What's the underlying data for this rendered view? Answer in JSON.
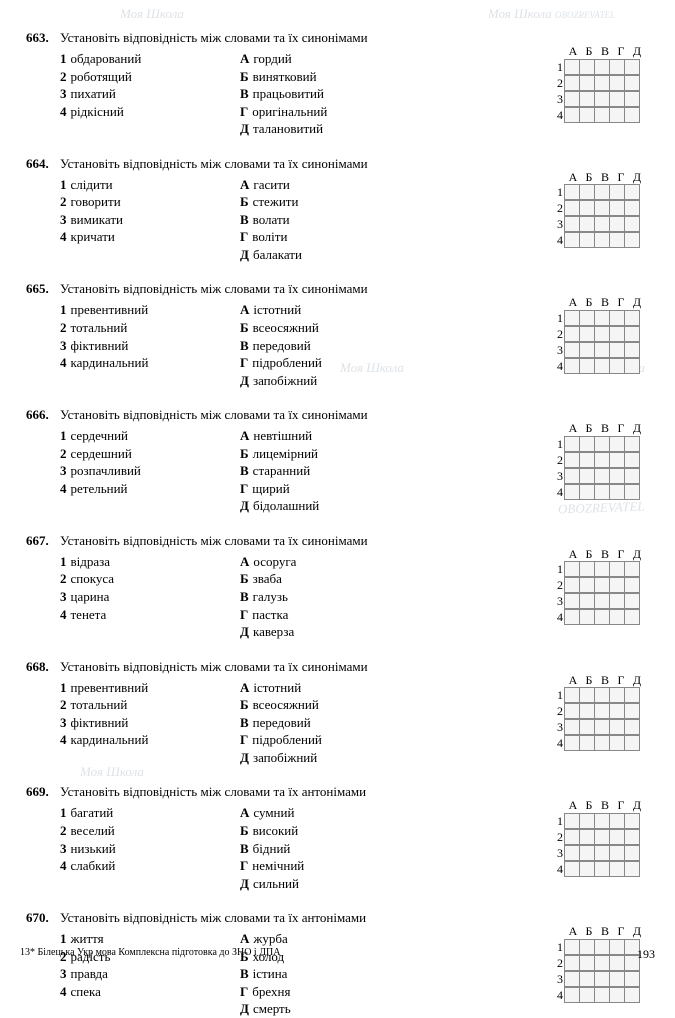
{
  "watermark_text": "Моя Школа",
  "watermark_sub": "OBOZREVATEL",
  "grid_headers": [
    "А",
    "Б",
    "В",
    "Г",
    "Д"
  ],
  "grid_rows": [
    "1",
    "2",
    "3",
    "4"
  ],
  "footer_left": "13* Білецька  Укр  мова  Комплексна підготовка до ЗНО і ДПА",
  "footer_page": "193",
  "questions": [
    {
      "num": "663.",
      "prompt": "Установіть відповідність між словами та їх синонімами",
      "left": [
        [
          "1",
          "обдарований"
        ],
        [
          "2",
          "роботящий"
        ],
        [
          "3",
          "пихатий"
        ],
        [
          "4",
          "рідкісний"
        ]
      ],
      "right": [
        [
          "А",
          "гордий"
        ],
        [
          "Б",
          "винятковий"
        ],
        [
          "В",
          "працьовитий"
        ],
        [
          "Г",
          "оригінальний"
        ],
        [
          "Д",
          "талановитий"
        ]
      ]
    },
    {
      "num": "664.",
      "prompt": "Установіть відповідність між словами та їх синонімами",
      "left": [
        [
          "1",
          "слідити"
        ],
        [
          "2",
          "говорити"
        ],
        [
          "3",
          "вимикати"
        ],
        [
          "4",
          "кричати"
        ]
      ],
      "right": [
        [
          "А",
          "гасити"
        ],
        [
          "Б",
          "стежити"
        ],
        [
          "В",
          "волати"
        ],
        [
          "Г",
          "воліти"
        ],
        [
          "Д",
          "балакати"
        ]
      ]
    },
    {
      "num": "665.",
      "prompt": "Установіть відповідність між словами та їх синонімами",
      "left": [
        [
          "1",
          "превентивний"
        ],
        [
          "2",
          "тотальний"
        ],
        [
          "3",
          "фіктивний"
        ],
        [
          "4",
          "кардинальний"
        ]
      ],
      "right": [
        [
          "А",
          "істотний"
        ],
        [
          "Б",
          "всеосяжний"
        ],
        [
          "В",
          "передовий"
        ],
        [
          "Г",
          "підроблений"
        ],
        [
          "Д",
          "запобіжний"
        ]
      ]
    },
    {
      "num": "666.",
      "prompt": "Установіть відповідність між словами та їх синонімами",
      "left": [
        [
          "1",
          "сердечний"
        ],
        [
          "2",
          "сердешний"
        ],
        [
          "3",
          "розпачливий"
        ],
        [
          "4",
          "ретельний"
        ]
      ],
      "right": [
        [
          "А",
          "невтішний"
        ],
        [
          "Б",
          "лицемірний"
        ],
        [
          "В",
          "старанний"
        ],
        [
          "Г",
          "щирий"
        ],
        [
          "Д",
          "бідолашний"
        ]
      ]
    },
    {
      "num": "667.",
      "prompt": "Установіть відповідність між словами та їх синонімами",
      "left": [
        [
          "1",
          "відраза"
        ],
        [
          "2",
          "спокуса"
        ],
        [
          "3",
          "царина"
        ],
        [
          "4",
          "тенета"
        ]
      ],
      "right": [
        [
          "А",
          "осоруга"
        ],
        [
          "Б",
          "зваба"
        ],
        [
          "В",
          "галузь"
        ],
        [
          "Г",
          "пастка"
        ],
        [
          "Д",
          "каверза"
        ]
      ]
    },
    {
      "num": "668.",
      "prompt": "Установіть відповідність між словами та їх синонімами",
      "left": [
        [
          "1",
          "превентивний"
        ],
        [
          "2",
          "тотальний"
        ],
        [
          "3",
          "фіктивний"
        ],
        [
          "4",
          "кардинальний"
        ]
      ],
      "right": [
        [
          "А",
          "істотний"
        ],
        [
          "Б",
          "всеосяжний"
        ],
        [
          "В",
          "передовий"
        ],
        [
          "Г",
          "підроблений"
        ],
        [
          "Д",
          "запобіжний"
        ]
      ]
    },
    {
      "num": "669.",
      "prompt": "Установіть відповідність між словами та їх антонімами",
      "left": [
        [
          "1",
          "багатий"
        ],
        [
          "2",
          "веселий"
        ],
        [
          "3",
          "низький"
        ],
        [
          "4",
          "слабкий"
        ]
      ],
      "right": [
        [
          "А",
          "сумний"
        ],
        [
          "Б",
          "високий"
        ],
        [
          "В",
          "бідний"
        ],
        [
          "Г",
          "немічний"
        ],
        [
          "Д",
          "сильний"
        ]
      ]
    },
    {
      "num": "670.",
      "prompt": "Установіть відповідність між словами та їх антонімами",
      "left": [
        [
          "1",
          "життя"
        ],
        [
          "2",
          "радість"
        ],
        [
          "3",
          "правда"
        ],
        [
          "4",
          "спека"
        ]
      ],
      "right": [
        [
          "А",
          "журба"
        ],
        [
          "Б",
          "холод"
        ],
        [
          "В",
          "істина"
        ],
        [
          "Г",
          "брехня"
        ],
        [
          "Д",
          "смерть"
        ]
      ]
    }
  ]
}
